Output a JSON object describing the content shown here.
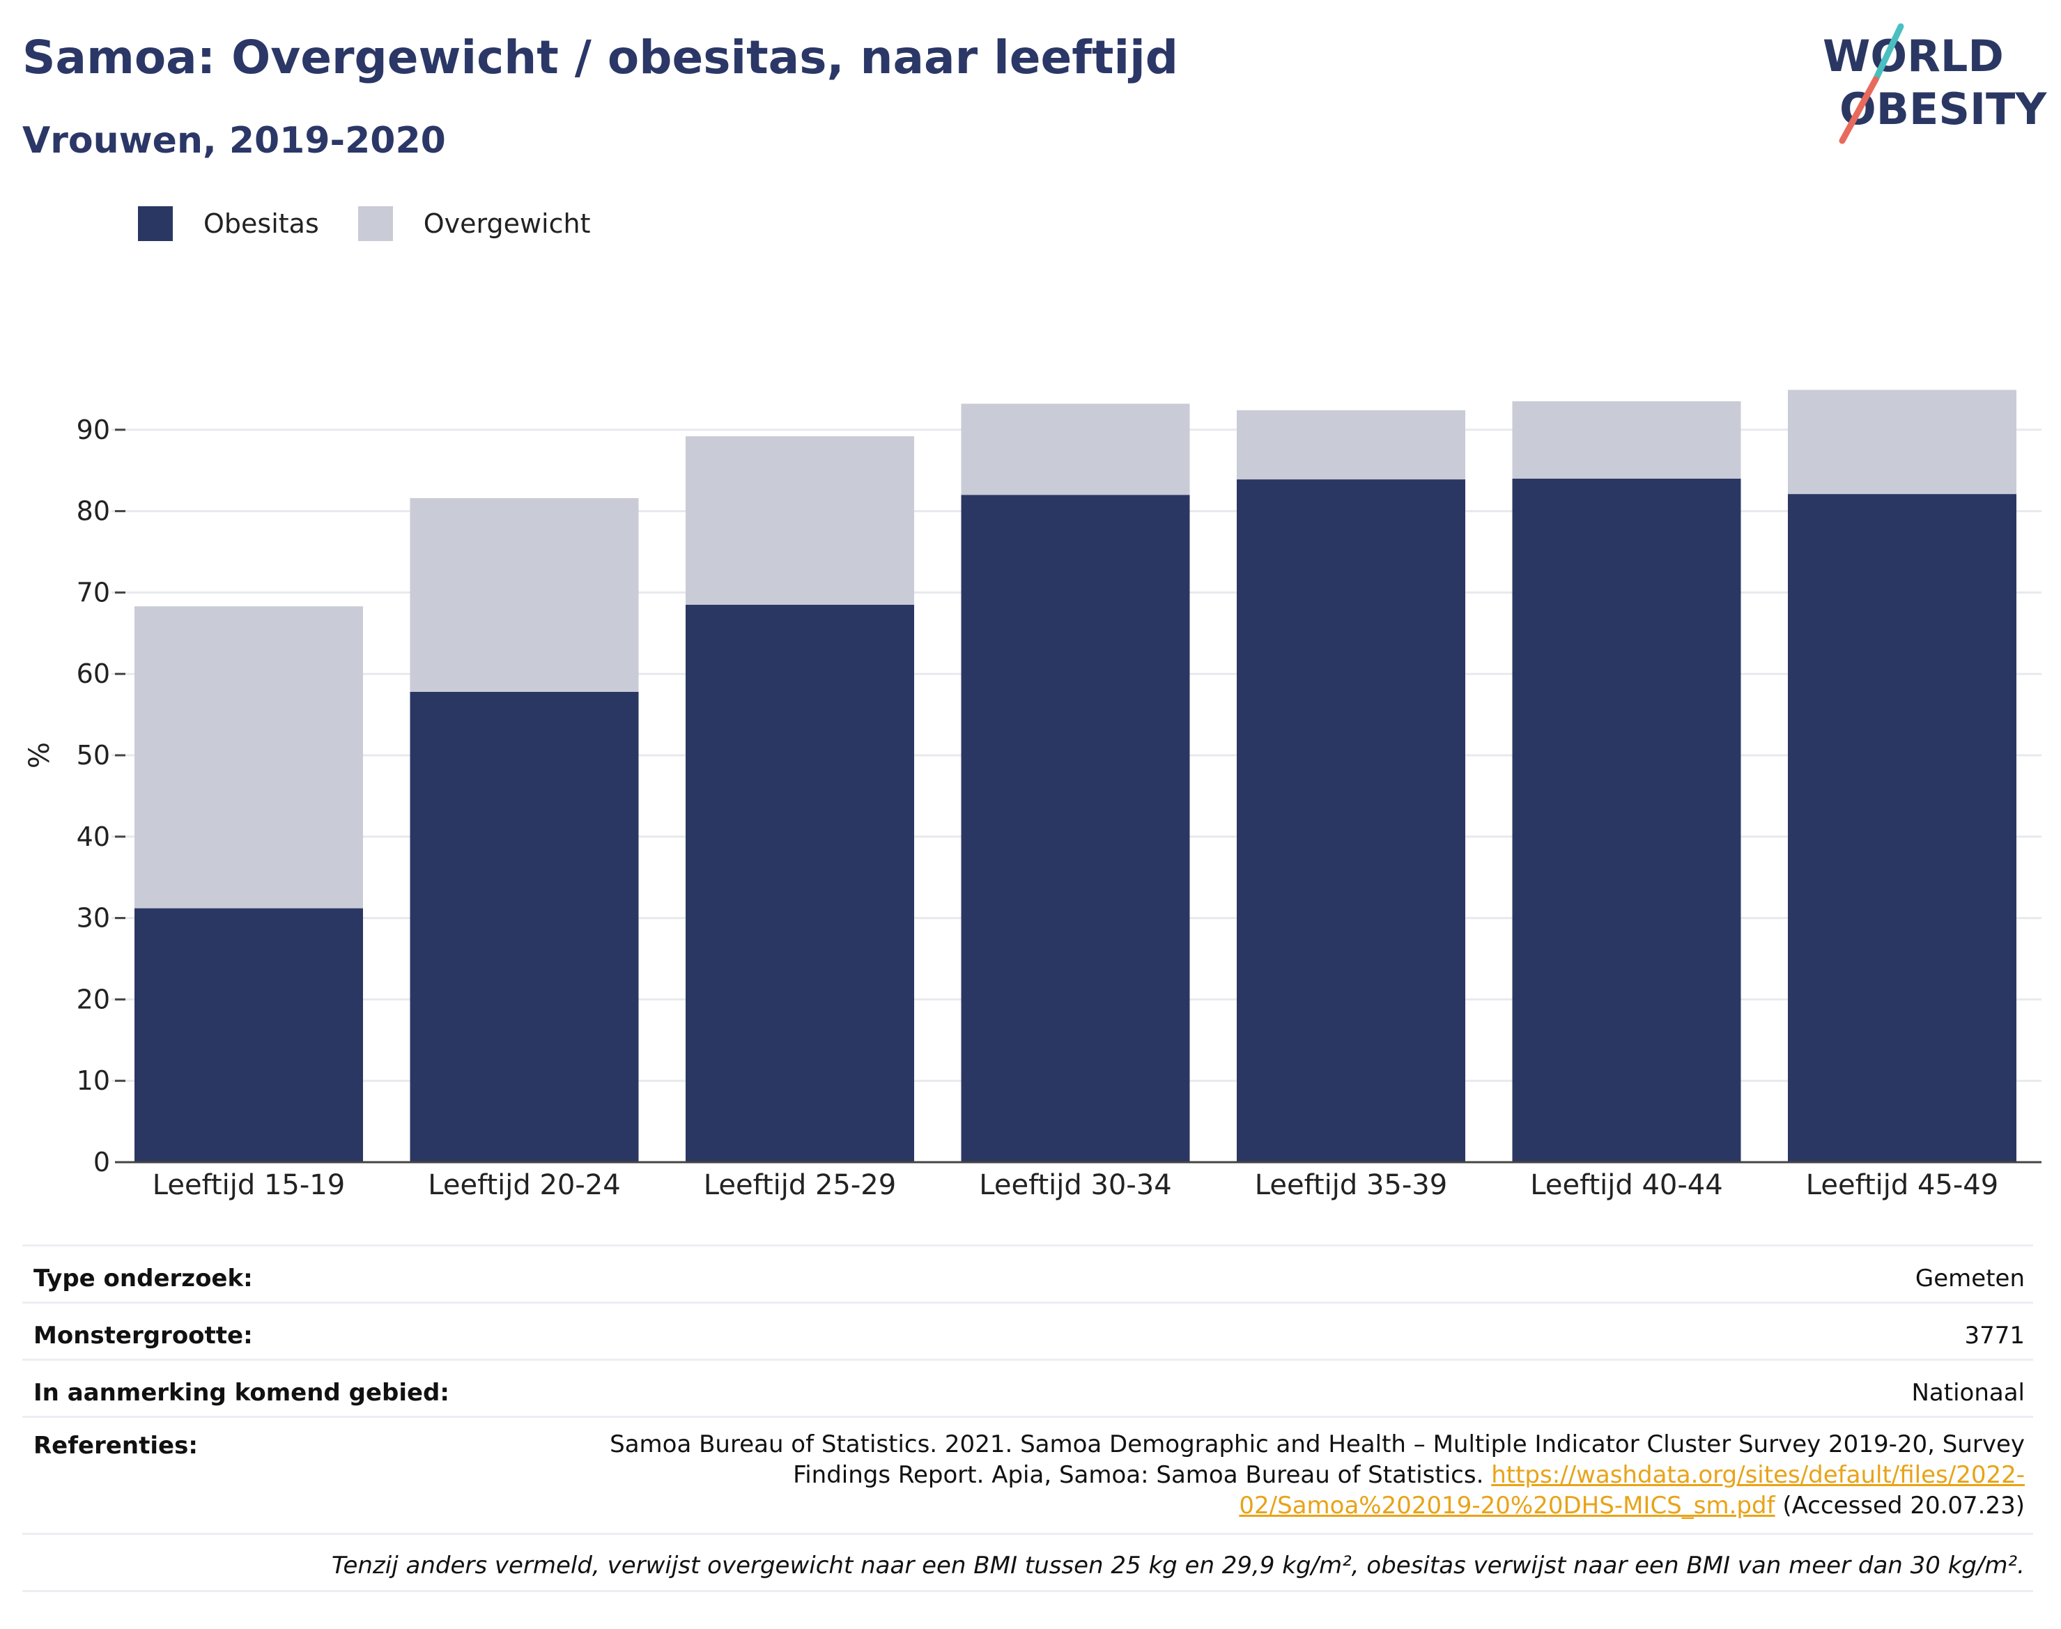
{
  "title": "Samoa: Overgewicht / obesitas, naar leeftijd",
  "subtitle": "Vrouwen, 2019-2020",
  "logo": {
    "line1": "WORLD",
    "line2": "OBESITY"
  },
  "legend": [
    {
      "label": "Obesitas",
      "color": "#2b3763"
    },
    {
      "label": "Overgewicht",
      "color": "#c9cbd6"
    }
  ],
  "chart_data": {
    "type": "bar",
    "stacked": true,
    "categories": [
      "Leeftijd 15-19",
      "Leeftijd 20-24",
      "Leeftijd 25-29",
      "Leeftijd 30-34",
      "Leeftijd 35-39",
      "Leeftijd 40-44",
      "Leeftijd 45-49"
    ],
    "series": [
      {
        "name": "Obesitas",
        "values": [
          31.2,
          57.8,
          68.5,
          82.0,
          83.9,
          84.0,
          82.1
        ]
      },
      {
        "name": "Overgewicht",
        "values": [
          37.1,
          23.8,
          20.7,
          11.2,
          8.5,
          9.5,
          12.8
        ]
      }
    ],
    "ylabel": "%",
    "ylim": [
      0,
      100
    ],
    "yticks": [
      0,
      10,
      20,
      30,
      40,
      50,
      60,
      70,
      80,
      90
    ],
    "grid": true
  },
  "info": {
    "survey_type_label": "Type onderzoek:",
    "survey_type_value": "Gemeten",
    "sample_size_label": "Monstergrootte:",
    "sample_size_value": "3771",
    "area_label": "In aanmerking komend gebied:",
    "area_value": "Nationaal",
    "references_label": "Referenties:",
    "references_text_1": "Samoa Bureau of Statistics. 2021. Samoa Demographic and Health – Multiple Indicator Cluster Survey 2019-20, Survey Findings Report. Apia, Samoa: Samoa Bureau of Statistics.",
    "references_link": "https://washdata.org/sites/default/files/2022-02/Samoa%202019-20%20DHS-MICS_sm.pdf",
    "references_text_2": "(Accessed 20.07.23)",
    "footnote": "Tenzij anders vermeld, verwijst overgewicht naar een BMI tussen 25 kg en 29,9 kg/m², obesitas verwijst naar een BMI van meer dan 30 kg/m²."
  }
}
